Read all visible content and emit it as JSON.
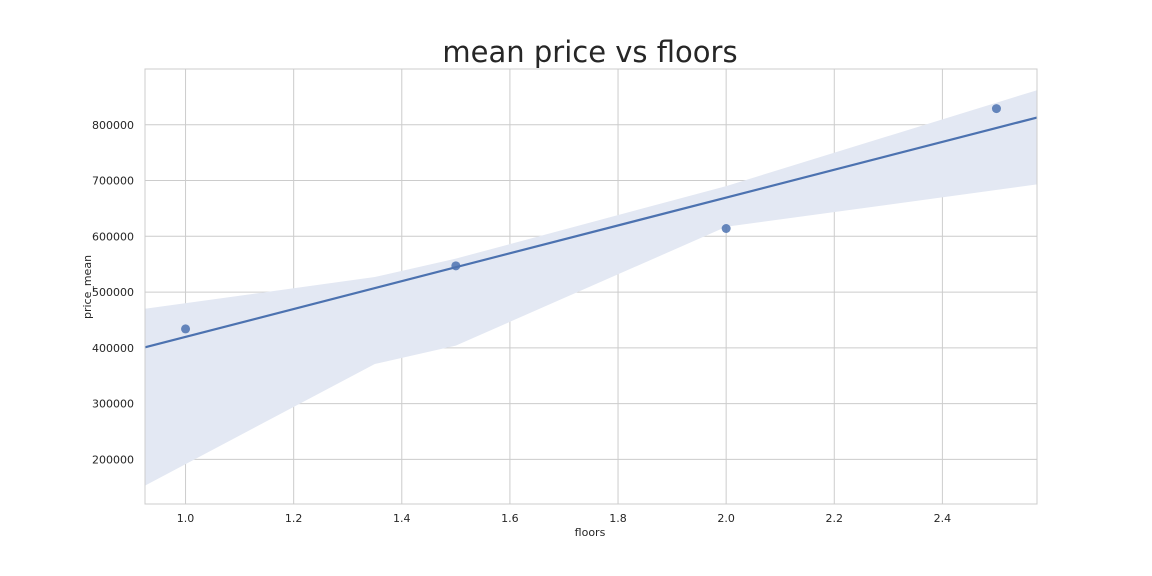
{
  "chart_data": {
    "type": "scatter",
    "title": "mean price vs floors",
    "xlabel": "floors",
    "ylabel": "price_mean",
    "x": [
      1.0,
      1.5,
      2.0,
      2.5
    ],
    "y": [
      434000,
      547000,
      614000,
      829000
    ],
    "xlim": [
      0.925,
      2.575
    ],
    "ylim": [
      120000,
      900000
    ],
    "x_ticks": [
      1.0,
      1.2,
      1.4,
      1.6,
      1.8,
      2.0,
      2.2,
      2.4
    ],
    "x_tick_labels": [
      "1.0",
      "1.2",
      "1.4",
      "1.6",
      "1.8",
      "2.0",
      "2.2",
      "2.4"
    ],
    "y_ticks": [
      200000,
      300000,
      400000,
      500000,
      600000,
      700000,
      800000
    ],
    "y_tick_labels": [
      "200000",
      "300000",
      "400000",
      "500000",
      "600000",
      "700000",
      "800000"
    ],
    "regression_line": {
      "x": [
        0.925,
        2.575
      ],
      "y": [
        401000,
        813000
      ]
    },
    "confidence_band": {
      "x": [
        0.925,
        1.35,
        1.5,
        2.0,
        2.575
      ],
      "upper": [
        470000,
        527000,
        560000,
        690000,
        862000
      ],
      "lower": [
        153000,
        371000,
        404000,
        617000,
        693000
      ]
    },
    "grid": true,
    "legend": "none",
    "colors": {
      "points": "#4c72b0",
      "line": "#4c72b0",
      "band": "#e3e8f3",
      "grid": "#cccccc",
      "frame": "#cccccc",
      "text": "#262626"
    }
  }
}
